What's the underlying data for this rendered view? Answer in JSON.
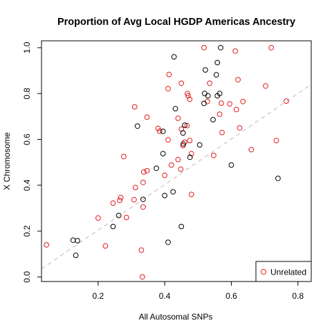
{
  "colors": {
    "unrelated": "#e31a1c",
    "other": "#000000",
    "trend_line": "#d3c5c5",
    "axis": "#000000"
  },
  "chart_data": {
    "type": "scatter",
    "title": "Proportion of Avg Local HGDP Americas Ancestry",
    "xlabel": "All Autosomal SNPs",
    "ylabel": "X Chromosome",
    "xlim": [
      0.03,
      0.84
    ],
    "ylim": [
      -0.02,
      1.03
    ],
    "x_ticks": [
      0.2,
      0.4,
      0.6,
      0.8
    ],
    "x_tick_labels": [
      "0.2",
      "0.4",
      "0.6",
      "0.8"
    ],
    "y_ticks": [
      0.0,
      0.2,
      0.4,
      0.6,
      0.8,
      1.0
    ],
    "y_tick_labels": [
      "0.0",
      "0.2",
      "0.4",
      "0.6",
      "0.8",
      "1.0"
    ],
    "grid": false,
    "legend_position": "bottom-right",
    "legend": [
      {
        "label": "Unrelated",
        "marker": "open-circle",
        "color_key": "unrelated"
      }
    ],
    "reference_line": {
      "style": "dashed",
      "points": [
        [
          0.03,
          0.035
        ],
        [
          0.84,
          0.84
        ]
      ]
    },
    "series": [
      {
        "name": "Unrelated",
        "color_key": "unrelated",
        "points": [
          [
            0.045,
            0.14
          ],
          [
            0.2,
            0.257
          ],
          [
            0.222,
            0.135
          ],
          [
            0.245,
            0.322
          ],
          [
            0.265,
            0.334
          ],
          [
            0.268,
            0.346
          ],
          [
            0.277,
            0.525
          ],
          [
            0.285,
            0.259
          ],
          [
            0.308,
            0.337
          ],
          [
            0.312,
            0.39
          ],
          [
            0.31,
            0.742
          ],
          [
            0.33,
            0.117
          ],
          [
            0.335,
            0.412
          ],
          [
            0.335,
            0.305
          ],
          [
            0.337,
            0.458
          ],
          [
            0.333,
            0.0
          ],
          [
            0.347,
            0.463
          ],
          [
            0.347,
            0.697
          ],
          [
            0.38,
            0.648
          ],
          [
            0.385,
            0.636
          ],
          [
            0.4,
            0.443
          ],
          [
            0.41,
            0.598
          ],
          [
            0.41,
            0.821
          ],
          [
            0.413,
            0.883
          ],
          [
            0.42,
            0.488
          ],
          [
            0.44,
            0.512
          ],
          [
            0.44,
            0.692
          ],
          [
            0.45,
            0.645
          ],
          [
            0.448,
            0.47
          ],
          [
            0.45,
            0.845
          ],
          [
            0.455,
            0.573
          ],
          [
            0.46,
            0.588
          ],
          [
            0.467,
            0.66
          ],
          [
            0.468,
            0.8
          ],
          [
            0.47,
            0.79
          ],
          [
            0.475,
            0.775
          ],
          [
            0.475,
            0.595
          ],
          [
            0.48,
            0.538
          ],
          [
            0.48,
            0.36
          ],
          [
            0.518,
            1.0
          ],
          [
            0.528,
            0.765
          ],
          [
            0.535,
            0.845
          ],
          [
            0.547,
            0.53
          ],
          [
            0.565,
            0.71
          ],
          [
            0.57,
            0.758
          ],
          [
            0.572,
            0.63
          ],
          [
            0.595,
            0.755
          ],
          [
            0.612,
            0.985
          ],
          [
            0.615,
            0.73
          ],
          [
            0.62,
            0.86
          ],
          [
            0.625,
            0.65
          ],
          [
            0.635,
            0.765
          ],
          [
            0.66,
            0.555
          ],
          [
            0.703,
            0.833
          ],
          [
            0.72,
            1.0
          ],
          [
            0.735,
            0.595
          ],
          [
            0.765,
            0.767
          ]
        ]
      },
      {
        "name": "",
        "color_key": "other",
        "points": [
          [
            0.125,
            0.16
          ],
          [
            0.133,
            0.094
          ],
          [
            0.138,
            0.158
          ],
          [
            0.245,
            0.22
          ],
          [
            0.262,
            0.268
          ],
          [
            0.318,
            0.658
          ],
          [
            0.335,
            0.338
          ],
          [
            0.375,
            0.474
          ],
          [
            0.395,
            0.635
          ],
          [
            0.395,
            0.538
          ],
          [
            0.4,
            0.355
          ],
          [
            0.41,
            0.151
          ],
          [
            0.425,
            0.371
          ],
          [
            0.428,
            0.96
          ],
          [
            0.432,
            0.734
          ],
          [
            0.45,
            0.22
          ],
          [
            0.455,
            0.628
          ],
          [
            0.456,
            0.58
          ],
          [
            0.46,
            0.662
          ],
          [
            0.476,
            0.522
          ],
          [
            0.505,
            0.576
          ],
          [
            0.518,
            0.757
          ],
          [
            0.52,
            0.8
          ],
          [
            0.522,
            0.903
          ],
          [
            0.53,
            0.79
          ],
          [
            0.545,
            0.686
          ],
          [
            0.555,
            0.882
          ],
          [
            0.558,
            0.935
          ],
          [
            0.558,
            0.79
          ],
          [
            0.565,
            0.8
          ],
          [
            0.568,
            1.0
          ],
          [
            0.6,
            0.488
          ],
          [
            0.74,
            0.43
          ]
        ]
      }
    ]
  }
}
